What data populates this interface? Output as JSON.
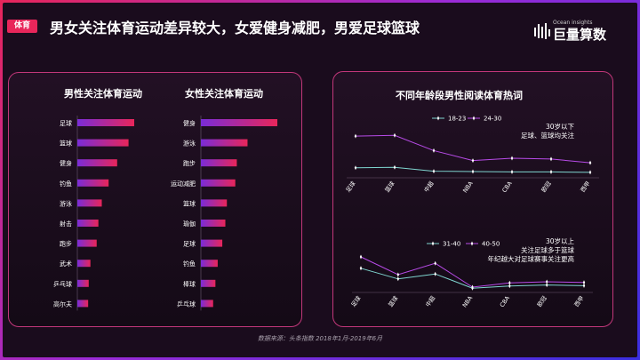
{
  "header": {
    "tag": "体育",
    "title": "男女关注体育运动差异较大，女爱健身减肥，男爱足球篮球"
  },
  "logo": {
    "en": "Ocean insights",
    "cn": "巨量算数"
  },
  "source": "数据来源：头条指数 2018年1月-2019年6月",
  "colors": {
    "bar_start": "#7a2cd8",
    "bar_end": "#e8265a",
    "line_a": "#7fd6d0",
    "line_b": "#b84be8"
  },
  "chart_data": [
    {
      "type": "bar",
      "title": "男性关注体育运动",
      "orientation": "horizontal",
      "categories": [
        "足球",
        "篮球",
        "健身",
        "钓鱼",
        "游泳",
        "射击",
        "跑步",
        "武术",
        "乒乓球",
        "高尔夫"
      ],
      "values": [
        100,
        90,
        70,
        55,
        43,
        37,
        34,
        23,
        20,
        19
      ]
    },
    {
      "type": "bar",
      "title": "女性关注体育运动",
      "orientation": "horizontal",
      "categories": [
        "健身",
        "游泳",
        "跑步",
        "运动减肥",
        "篮球",
        "瑜伽",
        "足球",
        "钓鱼",
        "棒球",
        "乒乓球"
      ],
      "values": [
        100,
        61,
        47,
        45,
        34,
        32,
        28,
        22,
        19,
        16
      ]
    },
    {
      "type": "line",
      "title": "不同年龄段男性阅读体育热词",
      "annotation": [
        "30岁以下",
        "足球、篮球均关注"
      ],
      "categories": [
        "足球",
        "篮球",
        "中超",
        "NBA",
        "CBA",
        "欧冠",
        "西甲"
      ],
      "series": [
        {
          "name": "18-23",
          "values": [
            17,
            18,
            8,
            7,
            6,
            6,
            5
          ]
        },
        {
          "name": "24-30",
          "values": [
            100,
            102,
            62,
            36,
            42,
            40,
            30
          ]
        }
      ],
      "ylim": [
        0,
        140
      ]
    },
    {
      "type": "line",
      "annotation": [
        "30岁以上",
        "关注足球多于篮球",
        "年纪越大对足球赛事关注更高"
      ],
      "categories": [
        "足球",
        "篮球",
        "中超",
        "NBA",
        "CBA",
        "欧冠",
        "西甲"
      ],
      "series": [
        {
          "name": "31-40",
          "values": [
            58,
            28,
            42,
            2,
            8,
            11,
            9
          ]
        },
        {
          "name": "40-50",
          "values": [
            90,
            40,
            72,
            5,
            17,
            20,
            18
          ]
        }
      ],
      "ylim": [
        0,
        120
      ]
    }
  ]
}
